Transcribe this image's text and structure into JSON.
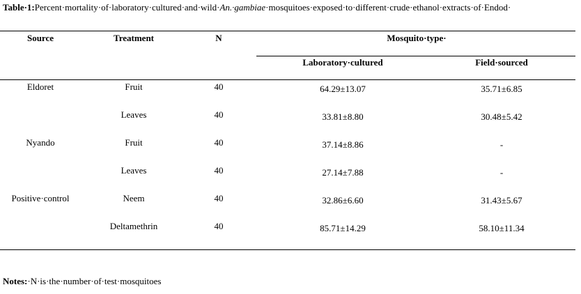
{
  "title": {
    "label": "Table·1:",
    "text": "Percent·mortality·of·laboratory·cultured·and·wild·",
    "italic": "An.·gambiae",
    "rest": "·mosquitoes·exposed·to·different·crude·ethanol·extracts·of·Endod·"
  },
  "table": {
    "header": [
      "Source",
      "Treatment",
      "N",
      "Mosquito·type·"
    ],
    "subheader": [
      "Laboratory·cultured",
      "Field·sourced"
    ],
    "rows": [
      [
        "Eldoret",
        "Fruit",
        "40",
        "64.29±13.07",
        "35.71±6.85"
      ],
      [
        null,
        "Leaves",
        "40",
        "33.81±8.80",
        "30.48±5.42"
      ],
      [
        "Nyando",
        "Fruit",
        "40",
        "37.14±8.86",
        "-"
      ],
      [
        null,
        "Leaves",
        "40",
        "27.14±7.88",
        "-"
      ],
      [
        "Positive·control",
        "Neem",
        "40",
        "32.86±6.60",
        "31.43±5.67"
      ],
      [
        null,
        "Deltamethrin",
        "40",
        "85.71±14.29",
        "58.10±11.34"
      ]
    ]
  },
  "notes": {
    "label": "Notes:",
    "text": "·N·is·the·number·of·test·mosquitoes"
  }
}
